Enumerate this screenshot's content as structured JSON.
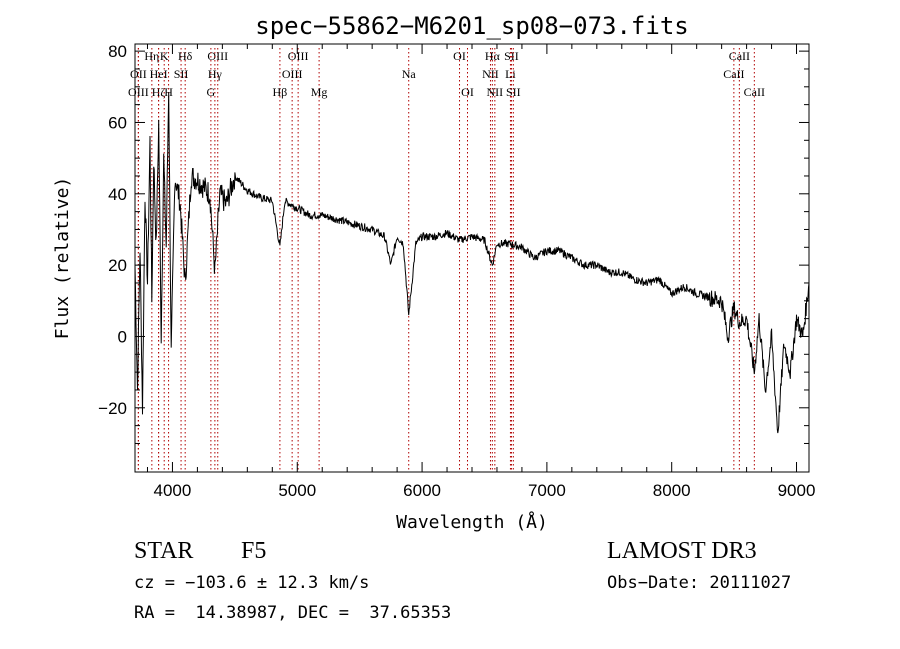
{
  "chart_data": {
    "type": "line",
    "title": "spec−55862−M6201_sp08−073.fits",
    "xlabel": "Wavelength (Å)",
    "ylabel": "Flux (relative)",
    "xlim": [
      3700,
      9100
    ],
    "ylim": [
      -38,
      82
    ],
    "xticks": [
      4000,
      5000,
      6000,
      7000,
      8000,
      9000
    ],
    "yticks": [
      -20,
      0,
      20,
      40,
      60,
      80
    ],
    "ytick_labels": [
      "−20",
      "0",
      "20",
      "40",
      "60",
      "80"
    ],
    "series": [
      {
        "name": "spectrum",
        "x": [
          3700,
          3720,
          3740,
          3760,
          3780,
          3800,
          3820,
          3835,
          3850,
          3870,
          3890,
          3910,
          3930,
          3950,
          3970,
          3990,
          4020,
          4060,
          4102,
          4150,
          4200,
          4250,
          4300,
          4340,
          4380,
          4430,
          4500,
          4600,
          4700,
          4800,
          4861,
          4900,
          4950,
          5000,
          5100,
          5200,
          5300,
          5400,
          5500,
          5600,
          5700,
          5750,
          5800,
          5850,
          5893,
          5950,
          6000,
          6100,
          6200,
          6300,
          6400,
          6500,
          6563,
          6600,
          6700,
          6800,
          6900,
          7000,
          7100,
          7200,
          7300,
          7400,
          7500,
          7600,
          7700,
          7800,
          7900,
          8000,
          8100,
          8200,
          8300,
          8400,
          8450,
          8498,
          8542,
          8600,
          8662,
          8700,
          8750,
          8800,
          8850,
          8900,
          8950,
          9000,
          9050,
          9100
        ],
        "y": [
          20,
          -15,
          25,
          -20,
          40,
          15,
          55,
          10,
          50,
          25,
          60,
          0,
          50,
          25,
          70,
          -5,
          45,
          38,
          15,
          45,
          44,
          42,
          40,
          18,
          40,
          37,
          45,
          41,
          39,
          38,
          25,
          38,
          37,
          36,
          34,
          34,
          33,
          32,
          31,
          30,
          28,
          20,
          28,
          26,
          6,
          26,
          28,
          28,
          29,
          27,
          28,
          27,
          20,
          26,
          26,
          25,
          22,
          24,
          24,
          22,
          20,
          20,
          18,
          18,
          16,
          15,
          16,
          12,
          14,
          12,
          11,
          10,
          0,
          8,
          4,
          5,
          -10,
          5,
          -15,
          0,
          -27,
          -2,
          -10,
          5,
          0,
          15
        ]
      }
    ],
    "lines": [
      {
        "label": "Hη",
        "x": 3835,
        "row": 1
      },
      {
        "label": "OII",
        "x": 3727,
        "row": 2
      },
      {
        "label": "OIII",
        "x": 3727,
        "row": 3
      },
      {
        "label": "Hζ",
        "x": 3889,
        "row": 3
      },
      {
        "label": "HeI",
        "x": 3889,
        "row": 2
      },
      {
        "label": "K",
        "x": 3934,
        "row": 1
      },
      {
        "label": "H",
        "x": 3969,
        "row": 3
      },
      {
        "label": "SII",
        "x": 4069,
        "row": 2
      },
      {
        "label": "Hδ",
        "x": 4102,
        "row": 1
      },
      {
        "label": "OIII",
        "x": 4363,
        "row": 1
      },
      {
        "label": "Hγ",
        "x": 4340,
        "row": 2
      },
      {
        "label": "G",
        "x": 4308,
        "row": 3
      },
      {
        "label": "Hβ",
        "x": 4861,
        "row": 3
      },
      {
        "label": "OIII",
        "x": 5007,
        "row": 1
      },
      {
        "label": "OIII",
        "x": 4959,
        "row": 2
      },
      {
        "label": "Mg",
        "x": 5175,
        "row": 3
      },
      {
        "label": "Na",
        "x": 5893,
        "row": 2
      },
      {
        "label": "OI",
        "x": 6300,
        "row": 1
      },
      {
        "label": "OI",
        "x": 6364,
        "row": 3
      },
      {
        "label": "Hα",
        "x": 6563,
        "row": 1
      },
      {
        "label": "NII",
        "x": 6548,
        "row": 2
      },
      {
        "label": "NII",
        "x": 6583,
        "row": 3
      },
      {
        "label": "SII",
        "x": 6716,
        "row": 1
      },
      {
        "label": "Li",
        "x": 6708,
        "row": 2
      },
      {
        "label": "SII",
        "x": 6731,
        "row": 3
      },
      {
        "label": "CaII",
        "x": 8542,
        "row": 1
      },
      {
        "label": "CaII",
        "x": 8498,
        "row": 2
      },
      {
        "label": "CaII",
        "x": 8662,
        "row": 3
      }
    ]
  },
  "info": {
    "class": "STAR",
    "subclass": "F5",
    "survey": "LAMOST DR3",
    "cz": "cz = −103.6 ± 12.3 km/s",
    "obsdate": "Obs−Date: 20111027",
    "radec": "RA =  14.38987, DEC =  37.65353"
  }
}
